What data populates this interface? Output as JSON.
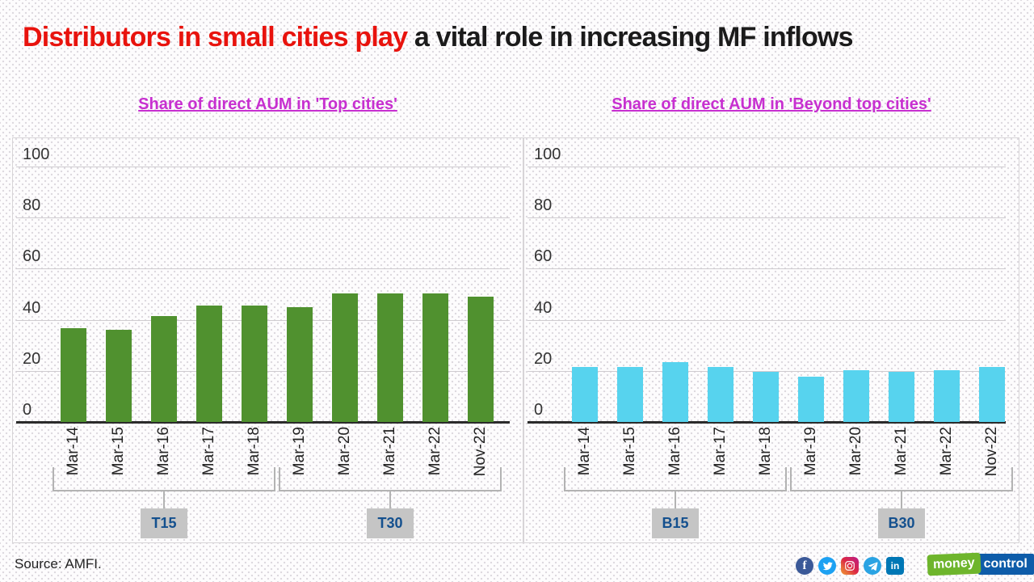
{
  "title": {
    "highlight": "Distributors in small cities play",
    "rest": " a vital role in increasing MF inflows"
  },
  "chart_data": [
    {
      "type": "bar",
      "title": "Share of direct AUM in 'Top cities'",
      "categories": [
        "Mar-14",
        "Mar-15",
        "Mar-16",
        "Mar-17",
        "Mar-18",
        "Mar-19",
        "Mar-20",
        "Mar-21",
        "Mar-22",
        "Nov-22"
      ],
      "values": [
        36.6,
        36.0,
        41.3,
        45.7,
        45.7,
        45.0,
        50.2,
        50.2,
        50.2,
        49.0
      ],
      "bar_color": "#50912f",
      "ylim": [
        0,
        100
      ],
      "yticks": [
        0,
        20,
        40,
        60,
        80,
        100
      ],
      "grid": "horizontal",
      "legend": "none",
      "groups": [
        {
          "label": "T15",
          "from": 0,
          "to": 4
        },
        {
          "label": "T30",
          "from": 5,
          "to": 9
        }
      ]
    },
    {
      "type": "bar",
      "title": "Share of direct AUM in 'Beyond top cities'",
      "categories": [
        "Mar-14",
        "Mar-15",
        "Mar-16",
        "Mar-17",
        "Mar-18",
        "Mar-19",
        "Mar-20",
        "Mar-21",
        "Mar-22",
        "Nov-22"
      ],
      "values": [
        21.6,
        21.4,
        23.4,
        21.6,
        19.5,
        17.6,
        20.4,
        19.6,
        20.3,
        21.5
      ],
      "bar_color": "#57d3ee",
      "ylim": [
        0,
        100
      ],
      "yticks": [
        0,
        20,
        40,
        60,
        80,
        100
      ],
      "grid": "horizontal",
      "legend": "none",
      "groups": [
        {
          "label": "B15",
          "from": 0,
          "to": 4
        },
        {
          "label": "B30",
          "from": 5,
          "to": 9
        }
      ]
    }
  ],
  "footer": {
    "source": "Source: AMFI.",
    "social_icons": [
      "facebook-icon",
      "twitter-icon",
      "instagram-icon",
      "telegram-icon",
      "linkedin-icon"
    ],
    "linkedin_label": "in",
    "facebook_label": "f",
    "logo": {
      "part1": "money",
      "part2": "control",
      "green": "#6eb52c",
      "blue": "#0e5ca9"
    }
  },
  "colors": {
    "title_highlight": "#e8130d",
    "title_rest": "#1b1b1b",
    "subtitle": "#c72fd0",
    "grid": "#cfccd0",
    "axis": "#2b2b2b",
    "bracket": "#b3b3b3",
    "group_box_bg": "#c5c5c5",
    "group_label_text": "#14508e"
  }
}
